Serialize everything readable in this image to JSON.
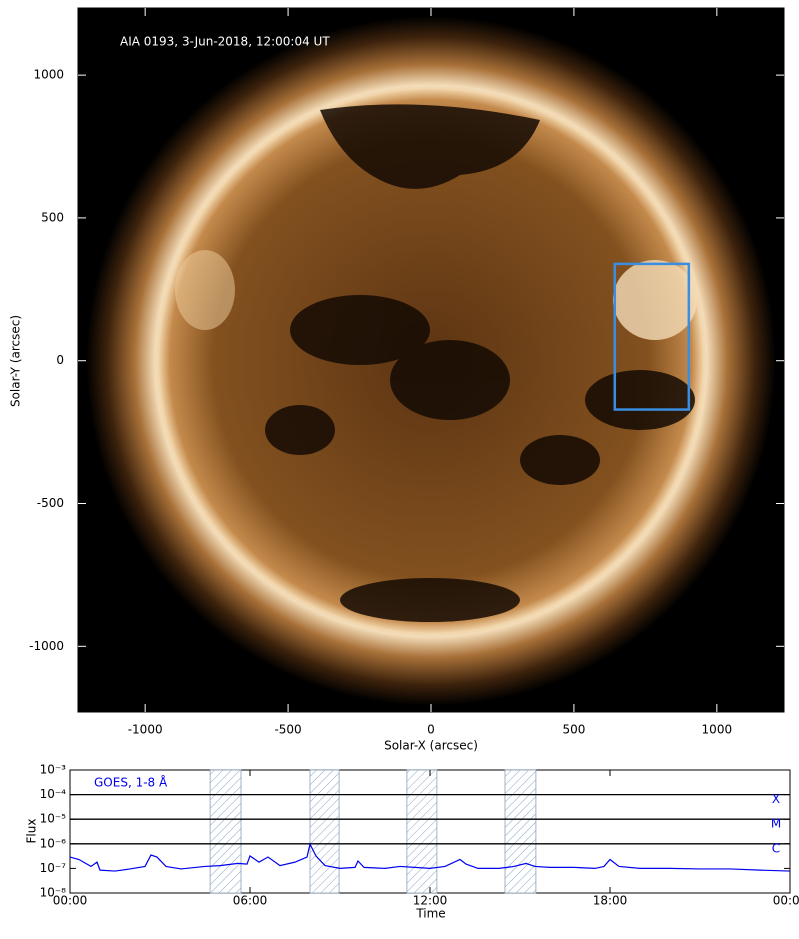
{
  "chart_data": [
    {
      "type": "image",
      "annotation": "AIA 0193, 3-Jun-2018, 12:00:04 UT",
      "xlabel": "Solar-X (arcsec)",
      "ylabel": "Solar-Y (arcsec)",
      "xlim": [
        -1235,
        1235
      ],
      "ylim": [
        -1230,
        1235
      ],
      "xticks": [
        -1000,
        -500,
        0,
        500,
        1000
      ],
      "yticks": [
        -1000,
        -500,
        0,
        500,
        1000
      ],
      "box": {
        "x": [
          643,
          902
        ],
        "y": [
          -171,
          339
        ],
        "color": "#3a8de0"
      }
    },
    {
      "type": "line",
      "xlabel": "Time",
      "ylabel": "Flux",
      "xlim": [
        0,
        24
      ],
      "xticks": [
        {
          "value": 0,
          "label": "00:00"
        },
        {
          "value": 6,
          "label": "06:00"
        },
        {
          "value": 12,
          "label": "12:00"
        },
        {
          "value": 18,
          "label": "18:00"
        },
        {
          "value": 24,
          "label": "00:00"
        }
      ],
      "ylim": [
        1e-08,
        0.001
      ],
      "yscale": "log",
      "yticks": [
        {
          "value": 1e-08,
          "label": "10⁻⁸"
        },
        {
          "value": 1e-07,
          "label": "10⁻⁷"
        },
        {
          "value": 1e-06,
          "label": "10⁻⁶"
        },
        {
          "value": 1e-05,
          "label": "10⁻⁵"
        },
        {
          "value": 0.0001,
          "label": "10⁻⁴"
        },
        {
          "value": 0.001,
          "label": "10⁻³"
        }
      ],
      "levels": [
        {
          "value": 0.0001,
          "label": "X"
        },
        {
          "value": 1e-05,
          "label": "M"
        },
        {
          "value": 1e-06,
          "label": "C"
        }
      ],
      "shaded": [
        [
          4.67,
          5.7
        ],
        [
          8.0,
          8.97
        ],
        [
          11.23,
          12.23
        ],
        [
          14.5,
          15.53
        ]
      ],
      "series": [
        {
          "name": "GOES, 1-8 Å",
          "color": "#0000ee",
          "x": [
            0,
            0.3,
            0.7,
            0.9,
            1.0,
            1.5,
            2.0,
            2.5,
            2.7,
            2.9,
            3.2,
            3.7,
            4.5,
            5.0,
            5.6,
            5.9,
            6.0,
            6.3,
            6.6,
            7.0,
            7.5,
            7.9,
            8.0,
            8.2,
            8.5,
            9.0,
            9.5,
            9.6,
            9.8,
            10.5,
            11.0,
            11.5,
            12.0,
            12.5,
            13.0,
            13.2,
            13.6,
            14.3,
            14.8,
            15.2,
            15.5,
            16.0,
            16.8,
            17.5,
            17.8,
            18.0,
            18.3,
            19.0,
            20.0,
            21.0,
            22.0,
            23.0,
            24.0
          ],
          "values": [
            2.9e-07,
            2.3e-07,
            1.2e-07,
            1.8e-07,
            8.5e-08,
            7.8e-08,
            9.5e-08,
            1.2e-07,
            3.5e-07,
            2.9e-07,
            1.2e-07,
            9.5e-08,
            1.2e-07,
            1.3e-07,
            1.6e-07,
            1.5e-07,
            3.2e-07,
            1.8e-07,
            2.9e-07,
            1.3e-07,
            1.8e-07,
            2.9e-07,
            9.7e-07,
            3.2e-07,
            1.3e-07,
            1e-07,
            1.1e-07,
            2e-07,
            1.1e-07,
            1e-07,
            1.2e-07,
            1.1e-07,
            1e-07,
            1.2e-07,
            2.3e-07,
            1.5e-07,
            1e-07,
            1e-07,
            1.2e-07,
            1.6e-07,
            1.2e-07,
            1.1e-07,
            1.1e-07,
            1e-07,
            1.2e-07,
            2.3e-07,
            1.2e-07,
            1e-07,
            1e-07,
            9.5e-08,
            9.5e-08,
            8.5e-08,
            7.8e-08
          ]
        }
      ]
    }
  ]
}
